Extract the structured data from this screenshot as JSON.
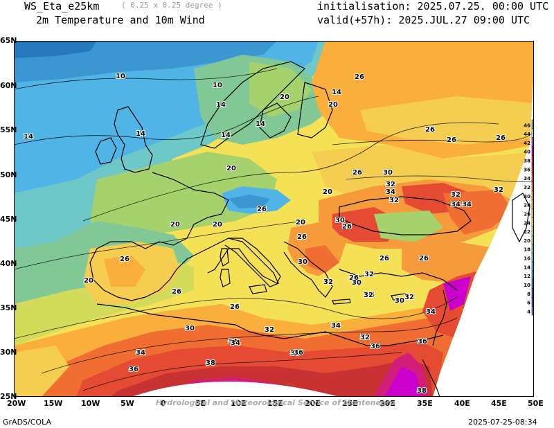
{
  "header": {
    "model": "WS_Eta_e25km",
    "resolution": "( 0.25 x 0.25 degree )",
    "product": "2m Temperature and 10m Wind",
    "initialisation": "initialisation: 2025.07.25. 00:00 UTC",
    "valid": "valid(+57h): 2025.JUL.27 09:00 UTC"
  },
  "footer": {
    "left": "GrADS/COLA",
    "right": "2025-07-25-08:34",
    "credit": "Hydrological and Meteorological Service of Montenegro"
  },
  "lat_labels": [
    "65N",
    "60N",
    "55N",
    "50N",
    "45N",
    "40N",
    "35N",
    "30N",
    "25N"
  ],
  "lon_labels": [
    "20W",
    "15W",
    "10W",
    "5W",
    "0",
    "5E",
    "10E",
    "15E",
    "20E",
    "25E",
    "30E",
    "35E",
    "40E",
    "45E",
    "50E"
  ],
  "colorbar": {
    "values": [
      "46",
      "44",
      "42",
      "40",
      "38",
      "36",
      "34",
      "32",
      "30",
      "28",
      "26",
      "24",
      "22",
      "20",
      "18",
      "16",
      "14",
      "12",
      "10",
      "8",
      "6",
      "4"
    ],
    "colors": [
      "#9a9a9a",
      "#dcdcdc",
      "#b454c8",
      "#cc00cc",
      "#d21e78",
      "#c83232",
      "#e44b32",
      "#f06e32",
      "#f59b3c",
      "#faaf3c",
      "#f5cd50",
      "#f5e156",
      "#d2dc5a",
      "#a6d26e",
      "#82c896",
      "#6ec8c8",
      "#50b4e6",
      "#3c96d2",
      "#2878be",
      "#1e5aaa",
      "#5046b4",
      "#8c64c8"
    ]
  },
  "contour_labels": [
    {
      "text": "10"
    },
    {
      "text": "10"
    },
    {
      "text": "14"
    },
    {
      "text": "14"
    },
    {
      "text": "14"
    },
    {
      "text": "14"
    },
    {
      "text": "14"
    },
    {
      "text": "14"
    },
    {
      "text": "20"
    },
    {
      "text": "20"
    },
    {
      "text": "20"
    },
    {
      "text": "20"
    },
    {
      "text": "20"
    },
    {
      "text": "20"
    },
    {
      "text": "20"
    },
    {
      "text": "20"
    },
    {
      "text": "26"
    },
    {
      "text": "26"
    },
    {
      "text": "26"
    },
    {
      "text": "26"
    },
    {
      "text": "26"
    },
    {
      "text": "26"
    },
    {
      "text": "26"
    },
    {
      "text": "26"
    },
    {
      "text": "26"
    },
    {
      "text": "26"
    },
    {
      "text": "26"
    },
    {
      "text": "26"
    },
    {
      "text": "26"
    },
    {
      "text": "26"
    },
    {
      "text": "26"
    },
    {
      "text": "30"
    },
    {
      "text": "30"
    },
    {
      "text": "30"
    },
    {
      "text": "30"
    },
    {
      "text": "30"
    },
    {
      "text": "30"
    },
    {
      "text": "30"
    },
    {
      "text": "30"
    },
    {
      "text": "32"
    },
    {
      "text": "32"
    },
    {
      "text": "32"
    },
    {
      "text": "32"
    },
    {
      "text": "32"
    },
    {
      "text": "32"
    },
    {
      "text": "32"
    },
    {
      "text": "32"
    },
    {
      "text": "32"
    },
    {
      "text": "32"
    },
    {
      "text": "34"
    },
    {
      "text": "34"
    },
    {
      "text": "34"
    },
    {
      "text": "34"
    },
    {
      "text": "34"
    },
    {
      "text": "34"
    },
    {
      "text": "34"
    },
    {
      "text": "34"
    },
    {
      "text": "36"
    },
    {
      "text": "36"
    },
    {
      "text": "36"
    },
    {
      "text": "36"
    },
    {
      "text": "36"
    },
    {
      "text": "38"
    },
    {
      "text": "38"
    },
    {
      "text": "38"
    }
  ]
}
